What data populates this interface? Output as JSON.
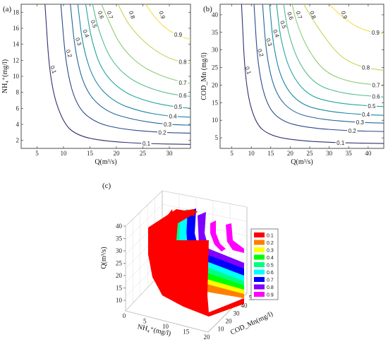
{
  "panels": {
    "a": {
      "label": "(a)"
    },
    "b": {
      "label": "(b)"
    },
    "c": {
      "label": "(c)"
    }
  },
  "chart_data": [
    {
      "type": "contour",
      "panel": "(a)",
      "xlabel": "Q(m³/s)",
      "ylabel": "NH₄⁺(mg/l)",
      "xlim": [
        2,
        34
      ],
      "ylim": [
        1,
        19
      ],
      "xticks": [
        5,
        10,
        15,
        20,
        25,
        30
      ],
      "yticks": [
        2,
        4,
        6,
        8,
        10,
        12,
        14,
        16,
        18
      ],
      "levels": [
        0.1,
        0.2,
        0.3,
        0.4,
        0.5,
        0.6,
        0.7,
        0.8,
        0.9
      ],
      "level_colors": [
        "#33306e",
        "#2b4a88",
        "#22669a",
        "#1a87a2",
        "#23a6a0",
        "#52bd8e",
        "#8fcb72",
        "#c6d45a",
        "#f0e04a"
      ],
      "contours": [
        {
          "level": 0.1,
          "x": [
            6.5,
            7.5,
            10,
            13,
            18,
            25,
            34
          ],
          "y": [
            19,
            9,
            4,
            2.5,
            1.9,
            1.6,
            1.5
          ]
        },
        {
          "level": 0.2,
          "x": [
            9.5,
            10.5,
            12.5,
            16,
            21,
            28,
            34
          ],
          "y": [
            19,
            11,
            6.2,
            4.2,
            3.4,
            3.0,
            2.9
          ]
        },
        {
          "level": 0.3,
          "x": [
            11.3,
            12.3,
            14.3,
            18,
            23,
            29,
            34
          ],
          "y": [
            19,
            12.5,
            8,
            5.6,
            4.6,
            4.0,
            3.9
          ]
        },
        {
          "level": 0.4,
          "x": [
            12.7,
            13.7,
            15.8,
            19.5,
            24.5,
            30,
            34
          ],
          "y": [
            19,
            13.5,
            9.3,
            6.8,
            5.6,
            5.0,
            4.9
          ]
        },
        {
          "level": 0.5,
          "x": [
            14.2,
            15.2,
            17.2,
            21,
            26,
            31,
            34
          ],
          "y": [
            19,
            14.7,
            10.7,
            8.1,
            6.8,
            6.2,
            6.0
          ]
        },
        {
          "level": 0.6,
          "x": [
            15.5,
            16.5,
            18.8,
            22.5,
            27.5,
            32,
            34
          ],
          "y": [
            19,
            16.0,
            12.1,
            9.6,
            8.2,
            7.6,
            7.5
          ]
        },
        {
          "level": 0.7,
          "x": [
            17.2,
            18.2,
            20.7,
            24.5,
            29,
            33,
            34
          ],
          "y": [
            19,
            17.4,
            13.8,
            11.3,
            9.9,
            9.2,
            9.1
          ]
        },
        {
          "level": 0.8,
          "x": [
            20.3,
            22.3,
            25.5,
            29,
            32,
            34
          ],
          "y": [
            19,
            16.4,
            14.1,
            12.5,
            11.8,
            11.6
          ]
        },
        {
          "level": 0.9,
          "x": [
            25.5,
            28,
            31,
            34
          ],
          "y": [
            19,
            16.7,
            15.2,
            14.6
          ]
        }
      ]
    },
    {
      "type": "contour",
      "panel": "(b)",
      "xlabel": "Q(m³/s)",
      "ylabel": "COD_Mn (mg/l)",
      "xlim": [
        2,
        44
      ],
      "ylim": [
        2,
        43
      ],
      "xticks": [
        5,
        10,
        15,
        20,
        25,
        30,
        35,
        40
      ],
      "yticks": [
        5,
        10,
        15,
        20,
        25,
        30,
        35,
        40
      ],
      "levels": [
        0.1,
        0.2,
        0.3,
        0.4,
        0.5,
        0.6,
        0.7,
        0.8,
        0.9
      ],
      "level_colors": [
        "#33306e",
        "#2b4a88",
        "#22669a",
        "#1a87a2",
        "#23a6a0",
        "#52bd8e",
        "#8fcb72",
        "#c6d45a",
        "#f0e04a"
      ],
      "contours": [
        {
          "level": 0.1,
          "x": [
            7.5,
            8.5,
            11,
            15,
            22,
            32,
            44
          ],
          "y": [
            43,
            20,
            9,
            5.5,
            4.2,
            3.6,
            3.4
          ]
        },
        {
          "level": 0.2,
          "x": [
            10.7,
            11.7,
            14,
            18,
            25,
            35,
            44
          ],
          "y": [
            43,
            25,
            14,
            9.5,
            7.8,
            7.0,
            6.8
          ]
        },
        {
          "level": 0.3,
          "x": [
            12.9,
            13.9,
            16.2,
            20.5,
            27.5,
            37,
            44
          ],
          "y": [
            43,
            28,
            17.5,
            12.2,
            10.3,
            9.4,
            9.2
          ]
        },
        {
          "level": 0.4,
          "x": [
            14.7,
            15.7,
            18,
            22.5,
            29.5,
            38.5,
            44
          ],
          "y": [
            43,
            30.5,
            20.5,
            14.5,
            12.5,
            11.6,
            11.4
          ]
        },
        {
          "level": 0.5,
          "x": [
            16.5,
            17.5,
            20,
            24.5,
            31.5,
            40,
            44
          ],
          "y": [
            43,
            33,
            23.5,
            17,
            14.9,
            14.1,
            13.9
          ]
        },
        {
          "level": 0.6,
          "x": [
            18.3,
            19.3,
            22,
            26.5,
            33.5,
            41.5,
            44
          ],
          "y": [
            43,
            35.5,
            26.5,
            20,
            17.6,
            16.8,
            16.6
          ]
        },
        {
          "level": 0.7,
          "x": [
            20.5,
            21.5,
            24.5,
            29,
            35.5,
            42.5,
            44
          ],
          "y": [
            43,
            38,
            30,
            23.5,
            20.8,
            20.0,
            19.8
          ]
        },
        {
          "level": 0.8,
          "x": [
            23.5,
            25,
            28.5,
            33,
            38.5,
            44
          ],
          "y": [
            43,
            40,
            34,
            27.8,
            25.0,
            24.2
          ]
        },
        {
          "level": 0.9,
          "x": [
            30,
            33,
            37,
            41,
            44
          ],
          "y": [
            43,
            39.8,
            36.5,
            35.0,
            34.6
          ]
        }
      ]
    },
    {
      "type": "surface3d",
      "panel": "(c)",
      "xlabel": "NH₄⁺(mg/l)",
      "ylabel": "COD_Mn(mg/l)",
      "zlabel": "Q(m³/s)",
      "xticks": [
        0,
        5,
        10,
        15,
        20
      ],
      "yticks": [
        10,
        20,
        30,
        40,
        50
      ],
      "zticks": [
        10,
        15,
        20,
        25,
        30,
        35,
        40
      ],
      "legend": {
        "placement": "right",
        "entries": [
          {
            "label": "0.1",
            "color": "#ff0000"
          },
          {
            "label": "0.2",
            "color": "#ff8000"
          },
          {
            "label": "0.3",
            "color": "#ffff00"
          },
          {
            "label": "0.4",
            "color": "#00ff00"
          },
          {
            "label": "0.5",
            "color": "#00ff80"
          },
          {
            "label": "0.6",
            "color": "#00ffff"
          },
          {
            "label": "0.7",
            "color": "#0000ff"
          },
          {
            "label": "0.8",
            "color": "#8000ff"
          },
          {
            "label": "0.9",
            "color": "#ff00ff"
          }
        ]
      }
    }
  ]
}
